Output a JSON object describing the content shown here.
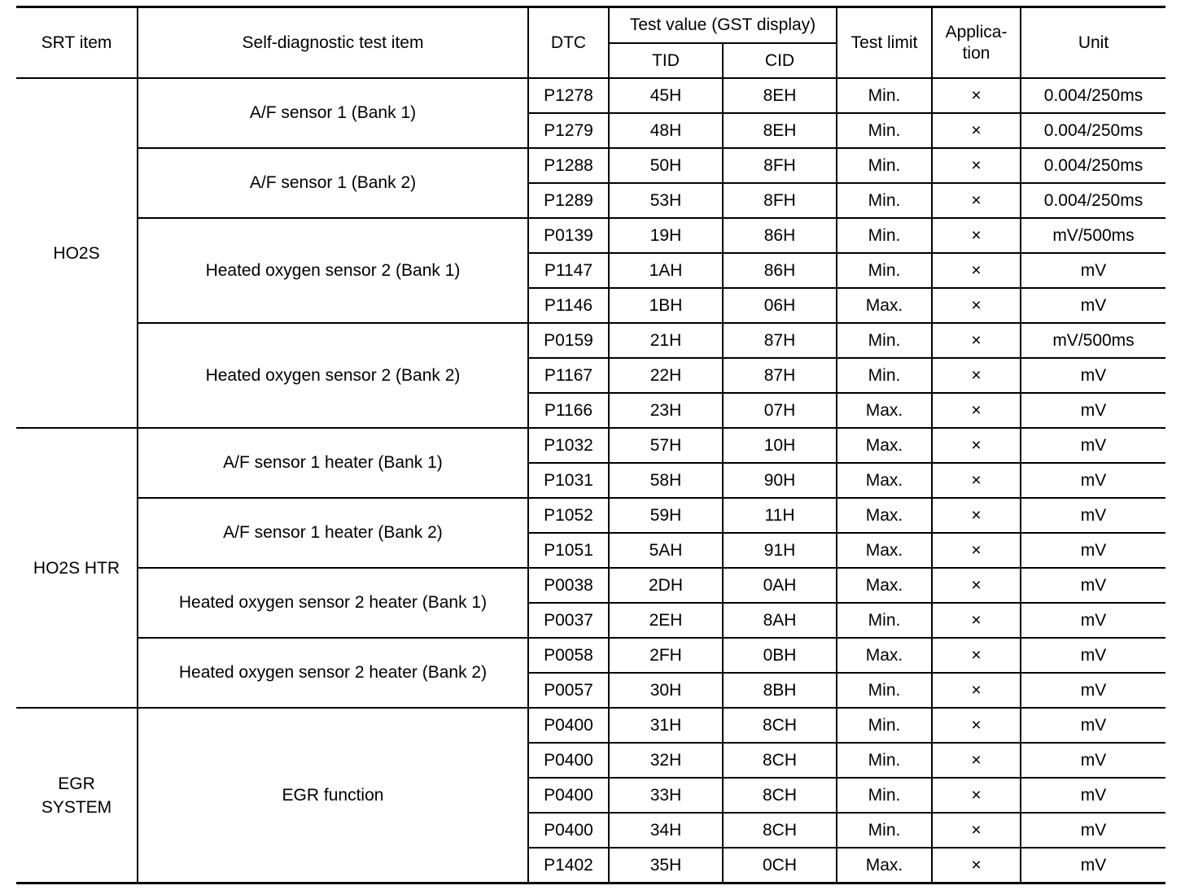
{
  "headers": {
    "srt_item": "SRT item",
    "self_diag_item": "Self-diagnostic test item",
    "dtc": "DTC",
    "test_value": "Test value (GST display)",
    "tid": "TID",
    "cid": "CID",
    "test_limit": "Test limit",
    "application": "Applica-\ntion",
    "unit": "Unit"
  },
  "groups": [
    {
      "srt_item": "HO2S",
      "items": [
        {
          "name": "A/F sensor 1 (Bank 1)",
          "rows": [
            [
              "P1278",
              "45H",
              "8EH",
              "Min.",
              "×",
              "0.004/250ms"
            ],
            [
              "P1279",
              "48H",
              "8EH",
              "Min.",
              "×",
              "0.004/250ms"
            ]
          ]
        },
        {
          "name": "A/F sensor 1 (Bank 2)",
          "rows": [
            [
              "P1288",
              "50H",
              "8FH",
              "Min.",
              "×",
              "0.004/250ms"
            ],
            [
              "P1289",
              "53H",
              "8FH",
              "Min.",
              "×",
              "0.004/250ms"
            ]
          ]
        },
        {
          "name": "Heated oxygen sensor 2 (Bank 1)",
          "rows": [
            [
              "P0139",
              "19H",
              "86H",
              "Min.",
              "×",
              "mV/500ms"
            ],
            [
              "P1147",
              "1AH",
              "86H",
              "Min.",
              "×",
              "mV"
            ],
            [
              "P1146",
              "1BH",
              "06H",
              "Max.",
              "×",
              "mV"
            ]
          ]
        },
        {
          "name": "Heated oxygen sensor 2 (Bank 2)",
          "rows": [
            [
              "P0159",
              "21H",
              "87H",
              "Min.",
              "×",
              "mV/500ms"
            ],
            [
              "P1167",
              "22H",
              "87H",
              "Min.",
              "×",
              "mV"
            ],
            [
              "P1166",
              "23H",
              "07H",
              "Max.",
              "×",
              "mV"
            ]
          ]
        }
      ]
    },
    {
      "srt_item": "HO2S HTR",
      "items": [
        {
          "name": "A/F sensor 1 heater (Bank 1)",
          "rows": [
            [
              "P1032",
              "57H",
              "10H",
              "Max.",
              "×",
              "mV"
            ],
            [
              "P1031",
              "58H",
              "90H",
              "Max.",
              "×",
              "mV"
            ]
          ]
        },
        {
          "name": "A/F sensor 1 heater (Bank 2)",
          "rows": [
            [
              "P1052",
              "59H",
              "11H",
              "Max.",
              "×",
              "mV"
            ],
            [
              "P1051",
              "5AH",
              "91H",
              "Max.",
              "×",
              "mV"
            ]
          ]
        },
        {
          "name": "Heated oxygen sensor 2 heater (Bank 1)",
          "rows": [
            [
              "P0038",
              "2DH",
              "0AH",
              "Max.",
              "×",
              "mV"
            ],
            [
              "P0037",
              "2EH",
              "8AH",
              "Min.",
              "×",
              "mV"
            ]
          ]
        },
        {
          "name": "Heated oxygen sensor 2 heater (Bank 2)",
          "rows": [
            [
              "P0058",
              "2FH",
              "0BH",
              "Max.",
              "×",
              "mV"
            ],
            [
              "P0057",
              "30H",
              "8BH",
              "Min.",
              "×",
              "mV"
            ]
          ]
        }
      ]
    },
    {
      "srt_item": "EGR\nSYSTEM",
      "items": [
        {
          "name": "EGR function",
          "rows": [
            [
              "P0400",
              "31H",
              "8CH",
              "Min.",
              "×",
              "mV"
            ],
            [
              "P0400",
              "32H",
              "8CH",
              "Min.",
              "×",
              "mV"
            ],
            [
              "P0400",
              "33H",
              "8CH",
              "Min.",
              "×",
              "mV"
            ],
            [
              "P0400",
              "34H",
              "8CH",
              "Min.",
              "×",
              "mV"
            ],
            [
              "P1402",
              "35H",
              "0CH",
              "Max.",
              "×",
              "mV"
            ]
          ]
        }
      ]
    }
  ]
}
